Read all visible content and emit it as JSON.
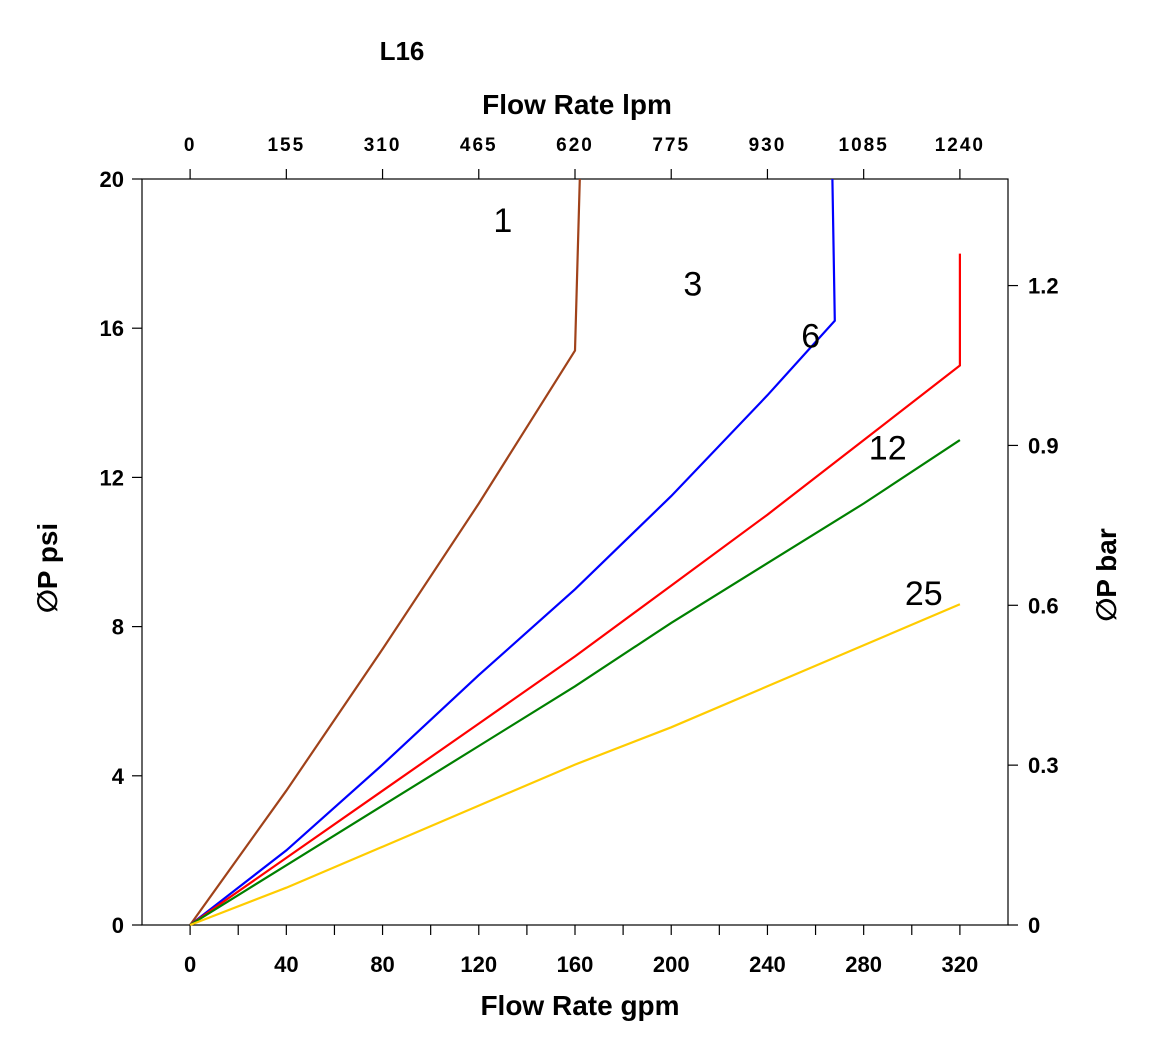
{
  "chart_data": {
    "type": "line",
    "title": "L16",
    "xlabel": "Flow Rate gpm",
    "x2label": "Flow Rate lpm",
    "ylabel": "∅P psi",
    "y2label": "∅P bar",
    "xlim": [
      -20,
      340
    ],
    "ylim": [
      0,
      20
    ],
    "y2lim": [
      0,
      1.4
    ],
    "x_ticks": [
      0,
      40,
      80,
      120,
      160,
      200,
      240,
      280,
      320
    ],
    "x_tick_labels": [
      "0",
      "40",
      "80",
      "120",
      "160",
      "200",
      "240",
      "280",
      "320"
    ],
    "x_minor_ticks": [
      20,
      60,
      100,
      140,
      180,
      220,
      260,
      300
    ],
    "x2_ticks_lpm": [
      0,
      155,
      310,
      465,
      620,
      775,
      930,
      1085,
      1240
    ],
    "x2_tick_labels": [
      "0",
      "155",
      "310",
      "465",
      "620",
      "775",
      "930",
      "1085",
      "1240"
    ],
    "y_ticks": [
      0,
      4,
      8,
      12,
      16,
      20
    ],
    "y_tick_labels": [
      "0",
      "4",
      "8",
      "12",
      "16",
      "20"
    ],
    "y2_ticks": [
      0,
      0.3,
      0.6,
      0.9,
      1.2
    ],
    "y2_tick_labels": [
      "0",
      "0.3",
      "0.6",
      "0.9",
      "1.2"
    ],
    "grid": false,
    "series": [
      {
        "name": "1",
        "color": "#a0421a",
        "x": [
          0,
          40,
          80,
          120,
          160
        ],
        "y": [
          0,
          3.6,
          7.4,
          11.3,
          15.4
        ],
        "x_end": 162,
        "y_end": 20
      },
      {
        "name": "3",
        "color": "#0000ff",
        "x": [
          0,
          40,
          80,
          120,
          160,
          200,
          240,
          268
        ],
        "y": [
          0,
          2.0,
          4.3,
          6.7,
          9.0,
          11.5,
          14.2,
          16.2
        ],
        "x_end": 267,
        "y_end": 20
      },
      {
        "name": "6",
        "color": "#ff0000",
        "x": [
          0,
          40,
          80,
          120,
          160,
          200,
          240,
          280,
          320
        ],
        "y": [
          0,
          1.8,
          3.6,
          5.4,
          7.2,
          9.1,
          11.0,
          13.0,
          15.0
        ],
        "x_end": 320,
        "y_end": 18.0
      },
      {
        "name": "12",
        "color": "#008000",
        "x": [
          0,
          40,
          80,
          120,
          160,
          200,
          240,
          280,
          320
        ],
        "y": [
          0,
          1.6,
          3.2,
          4.8,
          6.4,
          8.1,
          9.7,
          11.3,
          13.0
        ]
      },
      {
        "name": "25",
        "color": "#ffcc00",
        "x": [
          0,
          40,
          80,
          120,
          160,
          200,
          240,
          280,
          320
        ],
        "y": [
          0,
          1.0,
          2.1,
          3.2,
          4.3,
          5.3,
          6.4,
          7.5,
          8.6
        ]
      }
    ],
    "curve_labels": [
      "1",
      "3",
      "6",
      "12",
      "25"
    ]
  }
}
